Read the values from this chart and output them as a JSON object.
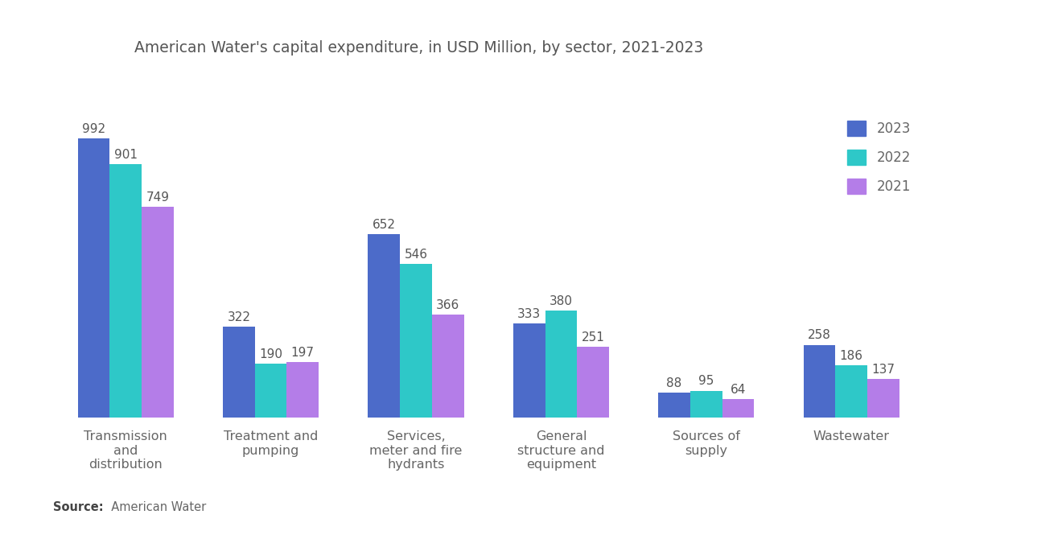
{
  "title": "American Water's capital expenditure, in USD Million, by sector, 2021-2023",
  "categories": [
    "Transmission\nand\ndistribution",
    "Treatment and\npumping",
    "Services,\nmeter and fire\nhydrants",
    "General\nstructure and\nequipment",
    "Sources of\nsupply",
    "Wastewater"
  ],
  "series": {
    "2023": [
      992,
      322,
      652,
      333,
      88,
      258
    ],
    "2022": [
      901,
      190,
      546,
      380,
      95,
      186
    ],
    "2021": [
      749,
      197,
      366,
      251,
      64,
      137
    ]
  },
  "colors": {
    "2023": "#4c6bc9",
    "2022": "#2ec8c8",
    "2021": "#b47de8"
  },
  "bar_width": 0.22,
  "ylim": [
    0,
    1200
  ],
  "source_bold": "Source:",
  "source_rest": "  American Water",
  "legend_labels": [
    "2023",
    "2022",
    "2021"
  ],
  "title_fontsize": 13.5,
  "label_fontsize": 12,
  "tick_fontsize": 11.5,
  "value_fontsize": 11,
  "background_color": "#ffffff"
}
